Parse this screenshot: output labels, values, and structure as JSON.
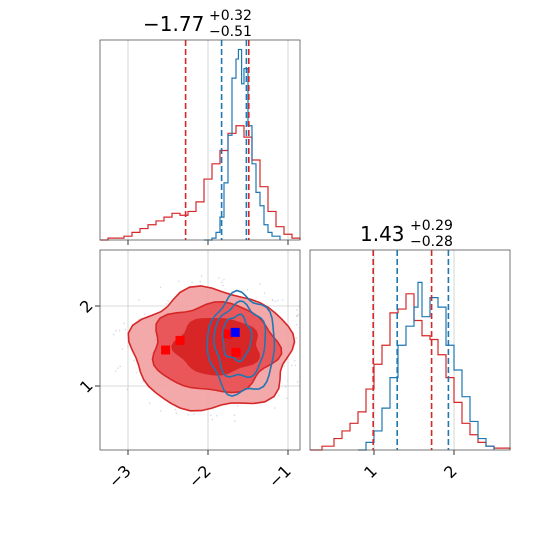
{
  "panels": {
    "top_title": {
      "value": "−1.77",
      "sup": "+0.32",
      "sub": "−0.51"
    },
    "right_title": {
      "value": "1.43",
      "sup": "+0.29",
      "sub": "−0.28"
    }
  },
  "colors": {
    "red": "#d62728",
    "blue": "#1f77b4",
    "grid": "#cccccc",
    "marker_red": "#ff0000",
    "marker_blue": "#0000ff"
  },
  "chart_data": [
    {
      "type": "area",
      "panel": "marginal-top",
      "title": "−1.77 +0.32 −0.51",
      "xlim": [
        -3.35,
        -0.85
      ],
      "xticks": [
        -3,
        -2,
        -1
      ],
      "grid": true,
      "series": [
        {
          "color": "red",
          "x": [
            -3.35,
            -3.25,
            -3.15,
            -3.05,
            -2.95,
            -2.85,
            -2.75,
            -2.65,
            -2.55,
            -2.45,
            -2.35,
            -2.25,
            -2.15,
            -2.05,
            -1.95,
            -1.85,
            -1.75,
            -1.65,
            -1.55,
            -1.45,
            -1.35,
            -1.25,
            -1.15,
            -1.05,
            -0.95,
            -0.85
          ],
          "values": [
            0,
            0.01,
            0.01,
            0.02,
            0.04,
            0.06,
            0.08,
            0.1,
            0.12,
            0.14,
            0.13,
            0.15,
            0.2,
            0.32,
            0.4,
            0.47,
            0.56,
            0.6,
            0.54,
            0.42,
            0.28,
            0.15,
            0.07,
            0.03,
            0.01,
            0
          ]
        },
        {
          "color": "blue",
          "x": [
            -2.05,
            -1.95,
            -1.9,
            -1.85,
            -1.8,
            -1.75,
            -1.7,
            -1.65,
            -1.62,
            -1.58,
            -1.55,
            -1.5,
            -1.45,
            -1.4,
            -1.35,
            -1.3,
            -1.25,
            -1.2,
            -1.1
          ],
          "values": [
            0,
            0.01,
            0.04,
            0.12,
            0.3,
            0.55,
            0.85,
            0.95,
            1.0,
            0.82,
            0.9,
            0.6,
            0.4,
            0.25,
            0.18,
            0.08,
            0.04,
            0.02,
            0
          ]
        }
      ],
      "vlines": [
        {
          "x": -2.28,
          "color": "red"
        },
        {
          "x": -1.49,
          "color": "red"
        },
        {
          "x": -1.83,
          "color": "blue"
        },
        {
          "x": -1.52,
          "color": "blue"
        }
      ]
    },
    {
      "type": "heatmap",
      "panel": "joint",
      "xlim": [
        -3.35,
        -0.85
      ],
      "ylim": [
        0.2,
        2.7
      ],
      "xticks": [
        -3,
        -2,
        -1
      ],
      "yticks": [
        1,
        2
      ],
      "grid": true,
      "contours": [
        {
          "color": "red",
          "level": "outer",
          "cx": -1.95,
          "cy": 1.45,
          "rx": 1.0,
          "ry": 0.75
        },
        {
          "color": "red",
          "level": "middle",
          "cx": -1.92,
          "cy": 1.48,
          "rx": 0.78,
          "ry": 0.55
        },
        {
          "color": "red",
          "level": "inner",
          "cx": -1.88,
          "cy": 1.5,
          "rx": 0.52,
          "ry": 0.35
        },
        {
          "color": "blue",
          "level": "outer",
          "cx": -1.58,
          "cy": 1.52,
          "rx": 0.42,
          "ry": 0.62
        },
        {
          "color": "blue",
          "level": "middle",
          "cx": -1.6,
          "cy": 1.56,
          "rx": 0.32,
          "ry": 0.46
        },
        {
          "color": "blue",
          "level": "inner",
          "cx": -1.64,
          "cy": 1.6,
          "rx": 0.18,
          "ry": 0.28
        }
      ],
      "markers": [
        {
          "x": -2.35,
          "y": 1.57,
          "color": "red"
        },
        {
          "x": -1.75,
          "y": 1.65,
          "color": "red"
        },
        {
          "x": -1.65,
          "y": 1.42,
          "color": "red"
        },
        {
          "x": -2.53,
          "y": 1.45,
          "color": "red"
        },
        {
          "x": -1.66,
          "y": 1.67,
          "color": "blue"
        }
      ]
    },
    {
      "type": "area",
      "panel": "marginal-right",
      "title": "1.43 +0.29 −0.28",
      "xlim": [
        0.2,
        2.7
      ],
      "xticks": [
        1,
        2
      ],
      "grid": true,
      "series": [
        {
          "color": "red",
          "x": [
            0.2,
            0.35,
            0.5,
            0.6,
            0.7,
            0.8,
            0.9,
            1.0,
            1.1,
            1.2,
            1.3,
            1.4,
            1.5,
            1.6,
            1.7,
            1.8,
            1.9,
            2.0,
            2.1,
            2.2,
            2.3,
            2.4,
            2.5,
            2.7
          ],
          "values": [
            0,
            0.02,
            0.06,
            0.1,
            0.14,
            0.2,
            0.32,
            0.45,
            0.55,
            0.72,
            0.74,
            0.82,
            0.68,
            0.6,
            0.58,
            0.5,
            0.38,
            0.25,
            0.14,
            0.08,
            0.04,
            0.02,
            0.01,
            0
          ]
        },
        {
          "color": "blue",
          "x": [
            0.8,
            0.9,
            1.0,
            1.1,
            1.2,
            1.3,
            1.4,
            1.5,
            1.55,
            1.6,
            1.7,
            1.8,
            1.9,
            2.0,
            2.1,
            2.2,
            2.3,
            2.4,
            2.5
          ],
          "values": [
            0,
            0.04,
            0.1,
            0.22,
            0.38,
            0.55,
            0.65,
            0.75,
            0.88,
            0.7,
            0.8,
            0.75,
            0.55,
            0.42,
            0.28,
            0.15,
            0.06,
            0.02,
            0
          ]
        }
      ],
      "vlines": [
        {
          "x": 0.99,
          "color": "red"
        },
        {
          "x": 1.72,
          "color": "red"
        },
        {
          "x": 1.29,
          "color": "blue"
        },
        {
          "x": 1.93,
          "color": "blue"
        }
      ]
    }
  ]
}
